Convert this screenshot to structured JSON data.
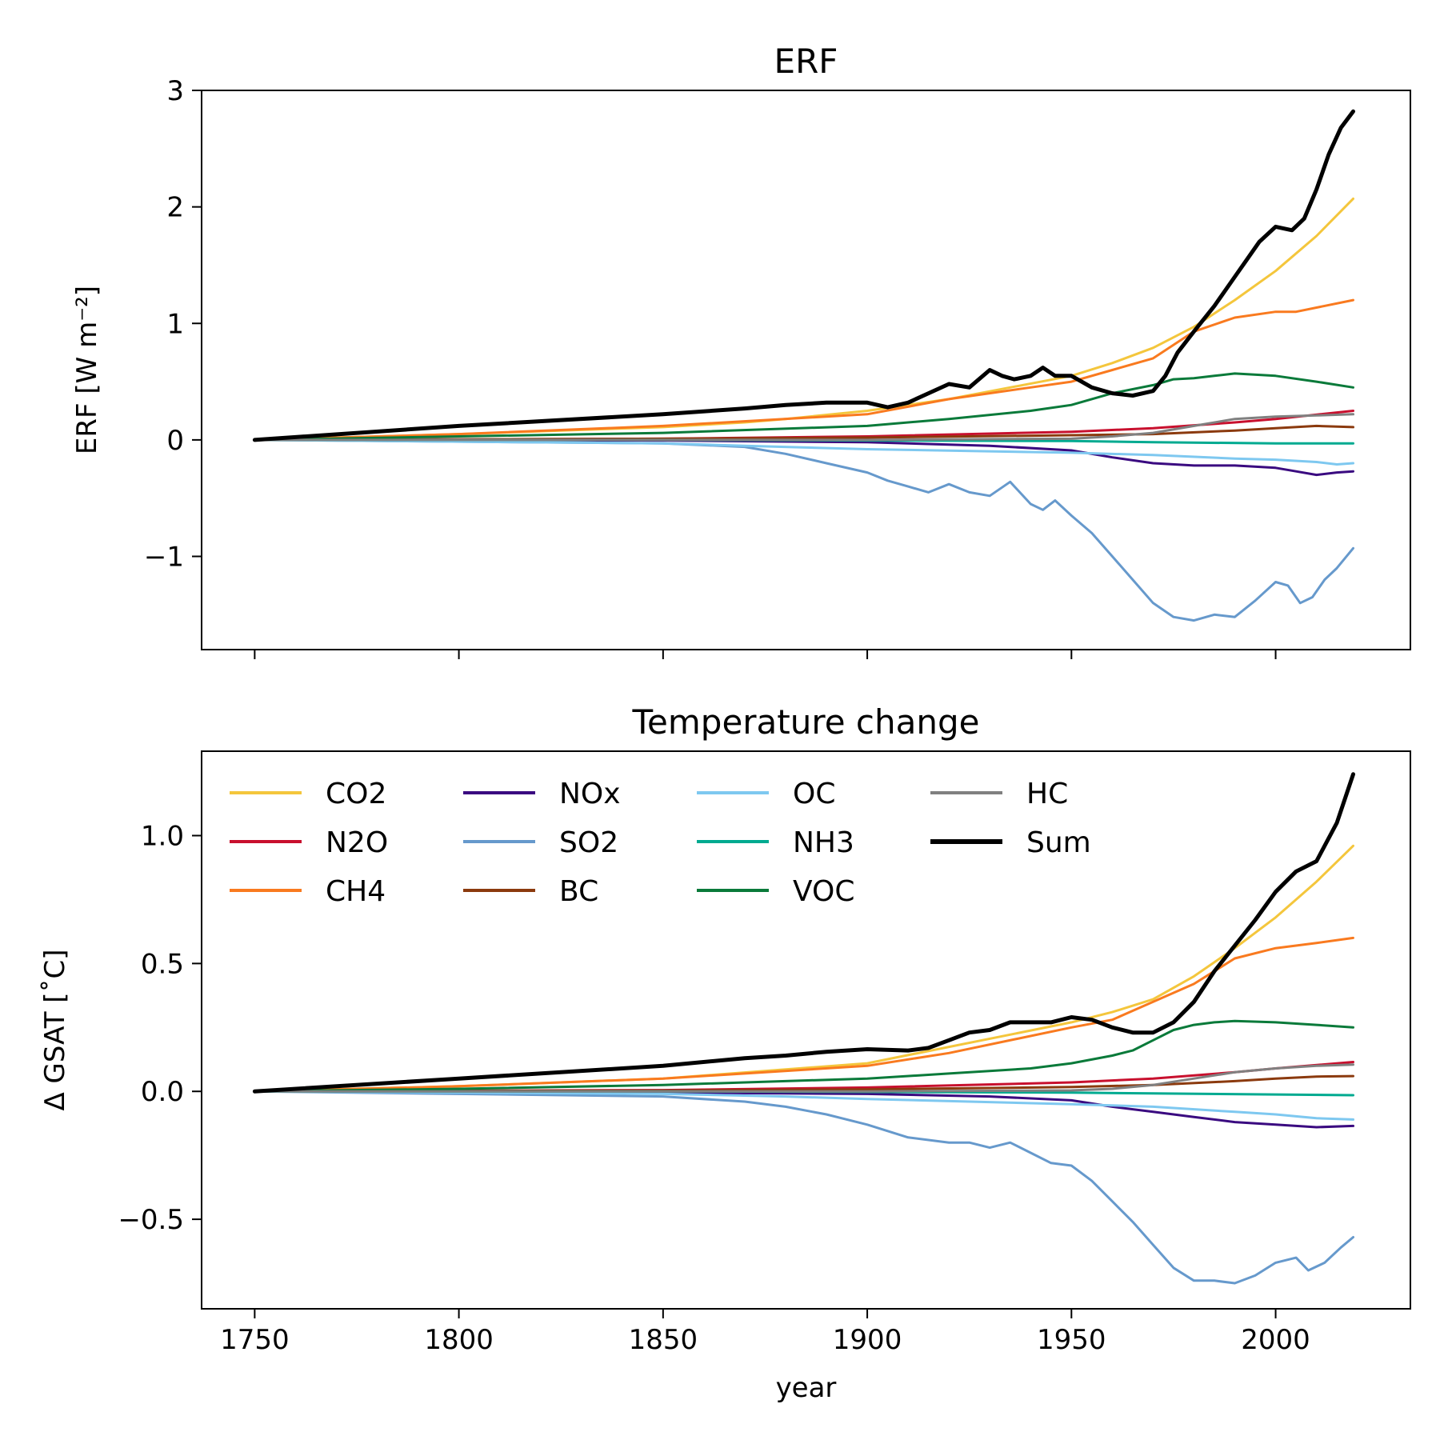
{
  "chart_data": [
    {
      "type": "line",
      "title": "ERF",
      "xlabel": "",
      "ylabel": "ERF [W m⁻²]",
      "ylim": [
        -1.8,
        3.0
      ],
      "xlim": [
        1737,
        2033
      ],
      "xticks": [
        1750,
        1800,
        1850,
        1900,
        1950,
        2000
      ],
      "xticks_labeled": false,
      "yticks": [
        -1,
        0,
        1,
        2,
        3
      ],
      "ytick_labels": [
        "−1",
        "0",
        "1",
        "2",
        "3"
      ],
      "legend": false,
      "grid": false,
      "series": [
        {
          "name": "CO2",
          "color": "#f4c63c",
          "width": 3,
          "x": [
            1750,
            1800,
            1850,
            1870,
            1880,
            1900,
            1920,
            1950,
            1960,
            1970,
            1980,
            1990,
            2000,
            2010,
            2019
          ],
          "y": [
            0,
            0.05,
            0.11,
            0.15,
            0.18,
            0.25,
            0.35,
            0.55,
            0.66,
            0.79,
            0.97,
            1.2,
            1.45,
            1.75,
            2.07
          ]
        },
        {
          "name": "N2O",
          "color": "#c8102e",
          "width": 3,
          "x": [
            1750,
            1850,
            1900,
            1950,
            1970,
            1990,
            2000,
            2019
          ],
          "y": [
            0,
            0.01,
            0.03,
            0.07,
            0.1,
            0.15,
            0.18,
            0.25
          ]
        },
        {
          "name": "CH4",
          "color": "#f97a1f",
          "width": 3,
          "x": [
            1750,
            1800,
            1850,
            1900,
            1920,
            1940,
            1950,
            1960,
            1970,
            1980,
            1990,
            2000,
            2005,
            2019
          ],
          "y": [
            0,
            0.05,
            0.12,
            0.22,
            0.35,
            0.45,
            0.5,
            0.6,
            0.7,
            0.93,
            1.05,
            1.1,
            1.1,
            1.2
          ]
        },
        {
          "name": "NOx",
          "color": "#3a0a80",
          "width": 3,
          "x": [
            1750,
            1850,
            1900,
            1930,
            1950,
            1960,
            1970,
            1980,
            1990,
            2000,
            2005,
            2010,
            2015,
            2019
          ],
          "y": [
            0,
            -0.005,
            -0.02,
            -0.05,
            -0.09,
            -0.15,
            -0.2,
            -0.22,
            -0.22,
            -0.24,
            -0.27,
            -0.3,
            -0.28,
            -0.27
          ]
        },
        {
          "name": "SO2",
          "color": "#6699cc",
          "width": 3,
          "x": [
            1750,
            1850,
            1870,
            1880,
            1890,
            1900,
            1905,
            1910,
            1915,
            1920,
            1925,
            1930,
            1935,
            1940,
            1943,
            1946,
            1950,
            1955,
            1960,
            1965,
            1970,
            1975,
            1980,
            1985,
            1990,
            1995,
            2000,
            2003,
            2006,
            2009,
            2012,
            2015,
            2019
          ],
          "y": [
            0,
            -0.03,
            -0.06,
            -0.12,
            -0.2,
            -0.28,
            -0.35,
            -0.4,
            -0.45,
            -0.38,
            -0.45,
            -0.48,
            -0.36,
            -0.55,
            -0.6,
            -0.52,
            -0.65,
            -0.8,
            -1.0,
            -1.2,
            -1.4,
            -1.52,
            -1.55,
            -1.5,
            -1.52,
            -1.38,
            -1.22,
            -1.25,
            -1.4,
            -1.35,
            -1.2,
            -1.1,
            -0.93
          ]
        },
        {
          "name": "BC",
          "color": "#8b3a0e",
          "width": 3,
          "x": [
            1750,
            1850,
            1900,
            1950,
            1970,
            1990,
            2000,
            2010,
            2019
          ],
          "y": [
            0,
            0.01,
            0.02,
            0.04,
            0.05,
            0.08,
            0.1,
            0.12,
            0.11
          ]
        },
        {
          "name": "OC",
          "color": "#7ec8f0",
          "width": 3,
          "x": [
            1750,
            1850,
            1870,
            1900,
            1950,
            1970,
            1990,
            2000,
            2010,
            2015,
            2019
          ],
          "y": [
            0,
            -0.03,
            -0.05,
            -0.08,
            -0.11,
            -0.13,
            -0.16,
            -0.17,
            -0.19,
            -0.21,
            -0.2
          ]
        },
        {
          "name": "NH3",
          "color": "#00aa90",
          "width": 3,
          "x": [
            1750,
            1850,
            1900,
            1950,
            1970,
            2000,
            2019
          ],
          "y": [
            0,
            0.0,
            -0.005,
            -0.01,
            -0.02,
            -0.03,
            -0.03
          ]
        },
        {
          "name": "VOC",
          "color": "#0a7a3a",
          "width": 3,
          "x": [
            1750,
            1800,
            1850,
            1900,
            1920,
            1940,
            1950,
            1960,
            1970,
            1975,
            1980,
            1985,
            1990,
            2000,
            2010,
            2019
          ],
          "y": [
            0,
            0.03,
            0.06,
            0.12,
            0.18,
            0.25,
            0.3,
            0.4,
            0.47,
            0.52,
            0.53,
            0.55,
            0.57,
            0.55,
            0.5,
            0.45
          ]
        },
        {
          "name": "HC",
          "color": "#808080",
          "width": 3,
          "x": [
            1750,
            1900,
            1950,
            1960,
            1970,
            1980,
            1990,
            2000,
            2010,
            2019
          ],
          "y": [
            0,
            0.0,
            0.01,
            0.03,
            0.06,
            0.12,
            0.18,
            0.2,
            0.21,
            0.22
          ]
        },
        {
          "name": "Sum",
          "color": "#000000",
          "width": 5,
          "x": [
            1750,
            1800,
            1850,
            1870,
            1880,
            1890,
            1900,
            1905,
            1910,
            1915,
            1920,
            1925,
            1930,
            1933,
            1936,
            1940,
            1943,
            1946,
            1950,
            1955,
            1960,
            1965,
            1970,
            1973,
            1976,
            1980,
            1985,
            1990,
            1993,
            1996,
            2000,
            2004,
            2007,
            2010,
            2013,
            2016,
            2019
          ],
          "y": [
            0,
            0.12,
            0.22,
            0.27,
            0.3,
            0.32,
            0.32,
            0.28,
            0.32,
            0.4,
            0.48,
            0.45,
            0.6,
            0.55,
            0.52,
            0.55,
            0.62,
            0.55,
            0.55,
            0.45,
            0.4,
            0.38,
            0.42,
            0.55,
            0.75,
            0.93,
            1.15,
            1.4,
            1.55,
            1.7,
            1.83,
            1.8,
            1.9,
            2.15,
            2.45,
            2.68,
            2.82
          ]
        }
      ]
    },
    {
      "type": "line",
      "title": "Temperature change",
      "xlabel": "year",
      "ylabel": "Δ GSAT [˚C]",
      "ylim": [
        -0.85,
        1.33
      ],
      "xlim": [
        1737,
        2033
      ],
      "xticks": [
        1750,
        1800,
        1850,
        1900,
        1950,
        2000
      ],
      "xtick_labels": [
        "1750",
        "1800",
        "1850",
        "1900",
        "1950",
        "2000"
      ],
      "yticks": [
        -0.5,
        0.0,
        0.5,
        1.0
      ],
      "ytick_labels": [
        "−0.5",
        "0.0",
        "0.5",
        "1.0"
      ],
      "legend": true,
      "legend_position": "top-left",
      "legend_columns": 4,
      "grid": false,
      "series": [
        {
          "name": "CO2",
          "color": "#f4c63c",
          "width": 3,
          "x": [
            1750,
            1800,
            1850,
            1900,
            1950,
            1960,
            1970,
            1980,
            1990,
            2000,
            2010,
            2019
          ],
          "y": [
            0,
            0.02,
            0.05,
            0.11,
            0.27,
            0.31,
            0.36,
            0.45,
            0.56,
            0.68,
            0.82,
            0.96
          ]
        },
        {
          "name": "N2O",
          "color": "#c8102e",
          "width": 3,
          "x": [
            1750,
            1850,
            1900,
            1950,
            1970,
            1990,
            2000,
            2019
          ],
          "y": [
            0,
            0.005,
            0.015,
            0.035,
            0.05,
            0.075,
            0.09,
            0.115
          ]
        },
        {
          "name": "CH4",
          "color": "#f97a1f",
          "width": 3,
          "x": [
            1750,
            1800,
            1850,
            1900,
            1920,
            1950,
            1960,
            1970,
            1980,
            1990,
            2000,
            2010,
            2019
          ],
          "y": [
            0,
            0.02,
            0.05,
            0.1,
            0.15,
            0.25,
            0.28,
            0.35,
            0.42,
            0.52,
            0.56,
            0.58,
            0.6
          ]
        },
        {
          "name": "NOx",
          "color": "#3a0a80",
          "width": 3,
          "x": [
            1750,
            1850,
            1900,
            1930,
            1950,
            1960,
            1970,
            1980,
            1990,
            2000,
            2010,
            2019
          ],
          "y": [
            0,
            -0.005,
            -0.01,
            -0.02,
            -0.035,
            -0.06,
            -0.08,
            -0.1,
            -0.12,
            -0.13,
            -0.14,
            -0.135
          ]
        },
        {
          "name": "SO2",
          "color": "#6699cc",
          "width": 3,
          "x": [
            1750,
            1850,
            1870,
            1880,
            1890,
            1900,
            1910,
            1920,
            1925,
            1930,
            1935,
            1940,
            1945,
            1950,
            1955,
            1960,
            1965,
            1970,
            1975,
            1980,
            1985,
            1990,
            1995,
            2000,
            2005,
            2008,
            2012,
            2016,
            2019
          ],
          "y": [
            0,
            -0.02,
            -0.04,
            -0.06,
            -0.09,
            -0.13,
            -0.18,
            -0.2,
            -0.2,
            -0.22,
            -0.2,
            -0.24,
            -0.28,
            -0.29,
            -0.35,
            -0.43,
            -0.51,
            -0.6,
            -0.69,
            -0.74,
            -0.74,
            -0.75,
            -0.72,
            -0.67,
            -0.65,
            -0.7,
            -0.67,
            -0.61,
            -0.57
          ]
        },
        {
          "name": "BC",
          "color": "#8b3a0e",
          "width": 3,
          "x": [
            1750,
            1850,
            1900,
            1950,
            1970,
            1990,
            2000,
            2010,
            2019
          ],
          "y": [
            0,
            0.003,
            0.008,
            0.017,
            0.025,
            0.04,
            0.05,
            0.058,
            0.06
          ]
        },
        {
          "name": "OC",
          "color": "#7ec8f0",
          "width": 3,
          "x": [
            1750,
            1850,
            1880,
            1900,
            1950,
            1970,
            1990,
            2000,
            2010,
            2019
          ],
          "y": [
            0,
            -0.01,
            -0.02,
            -0.03,
            -0.05,
            -0.06,
            -0.08,
            -0.09,
            -0.105,
            -0.11
          ]
        },
        {
          "name": "NH3",
          "color": "#00aa90",
          "width": 3,
          "x": [
            1750,
            1850,
            1900,
            1950,
            1970,
            2000,
            2019
          ],
          "y": [
            0,
            0,
            -0.002,
            -0.005,
            -0.008,
            -0.012,
            -0.015
          ]
        },
        {
          "name": "VOC",
          "color": "#0a7a3a",
          "width": 3,
          "x": [
            1750,
            1800,
            1850,
            1900,
            1920,
            1940,
            1950,
            1960,
            1965,
            1970,
            1975,
            1980,
            1985,
            1990,
            2000,
            2010,
            2019
          ],
          "y": [
            0,
            0.01,
            0.025,
            0.05,
            0.07,
            0.09,
            0.11,
            0.14,
            0.16,
            0.2,
            0.24,
            0.26,
            0.27,
            0.275,
            0.27,
            0.26,
            0.25
          ]
        },
        {
          "name": "HC",
          "color": "#808080",
          "width": 3,
          "x": [
            1750,
            1900,
            1950,
            1960,
            1970,
            1980,
            1990,
            2000,
            2010,
            2019
          ],
          "y": [
            0,
            0,
            0.004,
            0.01,
            0.025,
            0.05,
            0.075,
            0.09,
            0.1,
            0.105
          ]
        },
        {
          "name": "Sum",
          "color": "#000000",
          "width": 5,
          "x": [
            1750,
            1800,
            1850,
            1870,
            1880,
            1890,
            1900,
            1910,
            1915,
            1920,
            1925,
            1930,
            1935,
            1940,
            1945,
            1950,
            1955,
            1960,
            1965,
            1970,
            1975,
            1980,
            1985,
            1990,
            1995,
            2000,
            2005,
            2010,
            2015,
            2019
          ],
          "y": [
            0,
            0.05,
            0.1,
            0.13,
            0.14,
            0.155,
            0.165,
            0.16,
            0.17,
            0.2,
            0.23,
            0.24,
            0.27,
            0.27,
            0.27,
            0.29,
            0.28,
            0.25,
            0.23,
            0.23,
            0.27,
            0.35,
            0.47,
            0.57,
            0.67,
            0.78,
            0.86,
            0.9,
            1.05,
            1.24
          ]
        }
      ]
    }
  ]
}
